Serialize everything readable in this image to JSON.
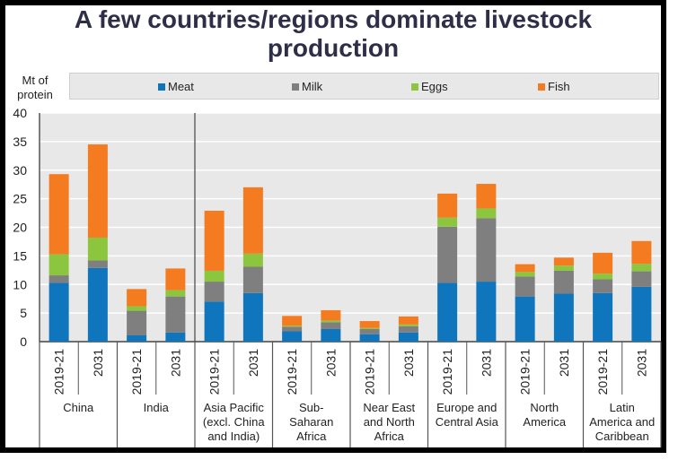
{
  "title": "A few countries/regions dominate livestock production",
  "title_lines": [
    "A few countries/regions dominate livestock",
    "production"
  ],
  "colors": {
    "Meat": "#0f75bd",
    "Milk": "#7f7f7f",
    "Eggs": "#8cc63f",
    "Fish": "#f47b20",
    "plot_bg": "#e8e8e8",
    "grid": "#ffffff"
  },
  "chart_data": {
    "type": "bar",
    "stacked": true,
    "title": "A few countries/regions dominate livestock production",
    "ylabel": "Mt of protein",
    "ylim": [
      0,
      40
    ],
    "yticks": [
      0,
      5,
      10,
      15,
      20,
      25,
      30,
      35,
      40
    ],
    "grid": true,
    "legend": "top",
    "groups": [
      "China",
      "India",
      "Asia Pacific (excl. China and India)",
      "Sub-Saharan Africa",
      "Near East and North Africa",
      "Europe and Central Asia",
      "North America",
      "Latin America and Caribbean"
    ],
    "group_label_lines": [
      [
        "China"
      ],
      [
        "India"
      ],
      [
        "Asia Pacific",
        "(excl. China",
        "and India)"
      ],
      [
        "Sub-",
        "Saharan",
        "Africa"
      ],
      [
        "Near East",
        "and North",
        "Africa"
      ],
      [
        "Europe and",
        "Central Asia"
      ],
      [
        "North",
        "America"
      ],
      [
        "Latin",
        "America and",
        "Caribbean"
      ]
    ],
    "periods": [
      "2019-21",
      "2031"
    ],
    "categories": [
      "China 2019-21",
      "China 2031",
      "India 2019-21",
      "India 2031",
      "Asia Pacific 2019-21",
      "Asia Pacific 2031",
      "Sub-Saharan Africa 2019-21",
      "Sub-Saharan Africa 2031",
      "Near East and North Africa 2019-21",
      "Near East and North Africa 2031",
      "Europe and Central Asia 2019-21",
      "Europe and Central Asia 2031",
      "North America 2019-21",
      "North America 2031",
      "Latin America and Caribbean 2019-21",
      "Latin America and Caribbean 2031"
    ],
    "series": [
      {
        "name": "Meat",
        "values": [
          10.3,
          12.9,
          1.1,
          1.6,
          7.0,
          8.5,
          1.8,
          2.2,
          1.3,
          1.6,
          10.3,
          10.5,
          7.9,
          8.4,
          8.5,
          9.6
        ]
      },
      {
        "name": "Milk",
        "values": [
          1.3,
          1.3,
          4.3,
          6.3,
          3.5,
          4.6,
          0.8,
          1.2,
          0.9,
          1.1,
          9.8,
          11.1,
          3.5,
          4.0,
          2.4,
          2.7
        ]
      },
      {
        "name": "Eggs",
        "values": [
          3.7,
          4.0,
          0.8,
          1.1,
          1.9,
          2.3,
          0.2,
          0.3,
          0.2,
          0.3,
          1.6,
          1.7,
          0.8,
          0.9,
          1.0,
          1.3
        ]
      },
      {
        "name": "Fish",
        "values": [
          14.0,
          16.3,
          3.0,
          3.8,
          10.5,
          11.6,
          1.7,
          1.8,
          1.2,
          1.4,
          4.2,
          4.3,
          1.35,
          1.4,
          3.65,
          4.0
        ]
      }
    ]
  }
}
